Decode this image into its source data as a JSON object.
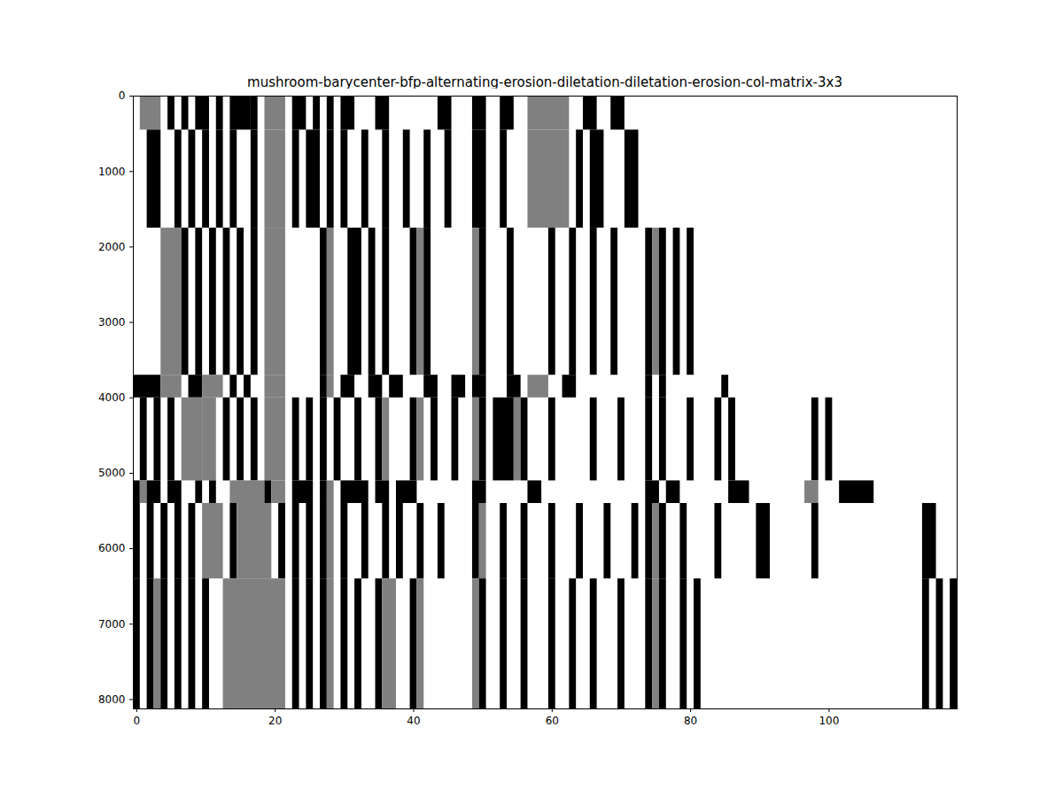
{
  "chart_data": {
    "type": "heatmap",
    "title": "mushroom-barycenter-bfp-alternating-erosion-diletation-diletation-erosion-col-matrix-3x3",
    "xlim": [
      -0.5,
      118.5
    ],
    "xticks": [
      0,
      20,
      40,
      60,
      80,
      100
    ],
    "ylim": [
      8123.5,
      -0.5
    ],
    "yticks": [
      0,
      1000,
      2000,
      3000,
      4000,
      5000,
      6000,
      7000,
      8000
    ],
    "clim": [
      0,
      1
    ],
    "row_bands": [
      {
        "rows": [
          0,
          450
        ],
        "cells": [
          [
            1,
            3,
            0.5
          ],
          [
            5,
            5,
            0
          ],
          [
            7,
            7,
            0
          ],
          [
            9,
            10,
            0
          ],
          [
            12,
            12,
            0
          ],
          [
            14,
            16,
            0
          ],
          [
            17,
            17,
            0
          ],
          [
            19,
            21,
            0.5
          ],
          [
            23,
            24,
            0
          ],
          [
            26,
            26,
            0
          ],
          [
            28,
            28,
            0
          ],
          [
            30,
            31,
            0
          ],
          [
            35,
            36,
            0
          ],
          [
            44,
            45,
            0
          ],
          [
            49,
            50,
            0
          ],
          [
            53,
            54,
            0
          ],
          [
            57,
            62,
            0.5
          ],
          [
            65,
            66,
            0
          ],
          [
            69,
            70,
            0
          ]
        ]
      },
      {
        "rows": [
          450,
          1750
        ],
        "cells": [
          [
            2,
            3,
            0
          ],
          [
            6,
            6,
            0
          ],
          [
            8,
            8,
            0
          ],
          [
            10,
            10,
            0
          ],
          [
            12,
            12,
            0
          ],
          [
            14,
            14,
            0
          ],
          [
            17,
            17,
            0
          ],
          [
            19,
            21,
            0.5
          ],
          [
            23,
            23,
            0
          ],
          [
            25,
            26,
            0
          ],
          [
            28,
            28,
            0
          ],
          [
            30,
            30,
            0
          ],
          [
            33,
            33,
            0
          ],
          [
            36,
            36,
            0
          ],
          [
            39,
            39,
            0
          ],
          [
            42,
            42,
            0
          ],
          [
            45,
            45,
            0
          ],
          [
            49,
            50,
            0
          ],
          [
            53,
            53,
            0
          ],
          [
            57,
            62,
            0.5
          ],
          [
            64,
            64,
            0
          ],
          [
            66,
            67,
            0
          ],
          [
            71,
            72,
            0
          ]
        ]
      },
      {
        "rows": [
          1750,
          3700
        ],
        "cells": [
          [
            4,
            6,
            0.5
          ],
          [
            7,
            7,
            0
          ],
          [
            9,
            9,
            0
          ],
          [
            11,
            11,
            0
          ],
          [
            13,
            13,
            0
          ],
          [
            15,
            15,
            0
          ],
          [
            17,
            17,
            0
          ],
          [
            19,
            21,
            0.5
          ],
          [
            27,
            27,
            0
          ],
          [
            28,
            28,
            0.5
          ],
          [
            31,
            32,
            0
          ],
          [
            34,
            34,
            0
          ],
          [
            36,
            36,
            0
          ],
          [
            40,
            40,
            0
          ],
          [
            41,
            41,
            0.5
          ],
          [
            42,
            42,
            0
          ],
          [
            49,
            49,
            0.5
          ],
          [
            50,
            50,
            0
          ],
          [
            54,
            54,
            0
          ],
          [
            60,
            60,
            0
          ],
          [
            63,
            63,
            0
          ],
          [
            66,
            66,
            0
          ],
          [
            69,
            69,
            0
          ],
          [
            74,
            74,
            0
          ],
          [
            75,
            75,
            0.5
          ],
          [
            76,
            76,
            0
          ],
          [
            78,
            78,
            0
          ],
          [
            80,
            80,
            0
          ]
        ]
      },
      {
        "rows": [
          3700,
          4000
        ],
        "cells": [
          [
            0,
            3,
            0
          ],
          [
            4,
            6,
            0.5
          ],
          [
            8,
            9,
            0
          ],
          [
            10,
            12,
            0.5
          ],
          [
            14,
            14,
            0
          ],
          [
            16,
            16,
            0
          ],
          [
            19,
            21,
            0.5
          ],
          [
            27,
            27,
            0
          ],
          [
            28,
            28,
            0.5
          ],
          [
            30,
            31,
            0
          ],
          [
            34,
            35,
            0
          ],
          [
            37,
            38,
            0
          ],
          [
            42,
            43,
            0
          ],
          [
            46,
            47,
            0
          ],
          [
            49,
            50,
            0
          ],
          [
            54,
            55,
            0
          ],
          [
            57,
            59,
            0.5
          ],
          [
            62,
            63,
            0
          ],
          [
            74,
            74,
            0
          ],
          [
            76,
            76,
            0
          ],
          [
            85,
            85,
            0
          ]
        ]
      },
      {
        "rows": [
          4000,
          5100
        ],
        "cells": [
          [
            1,
            1,
            0
          ],
          [
            3,
            3,
            0
          ],
          [
            5,
            5,
            0
          ],
          [
            7,
            9,
            0.5
          ],
          [
            10,
            11,
            0.5
          ],
          [
            13,
            13,
            0
          ],
          [
            15,
            15,
            0
          ],
          [
            17,
            17,
            0
          ],
          [
            19,
            21,
            0.5
          ],
          [
            23,
            23,
            0
          ],
          [
            25,
            25,
            0
          ],
          [
            27,
            27,
            0
          ],
          [
            29,
            29,
            0
          ],
          [
            32,
            32,
            0
          ],
          [
            35,
            35,
            0
          ],
          [
            36,
            36,
            0.5
          ],
          [
            40,
            40,
            0
          ],
          [
            41,
            41,
            0.5
          ],
          [
            43,
            43,
            0
          ],
          [
            46,
            46,
            0
          ],
          [
            49,
            49,
            0.5
          ],
          [
            50,
            50,
            0
          ],
          [
            52,
            54,
            0
          ],
          [
            55,
            55,
            0.5
          ],
          [
            56,
            56,
            0
          ],
          [
            60,
            60,
            0
          ],
          [
            66,
            66,
            0
          ],
          [
            70,
            70,
            0
          ],
          [
            74,
            74,
            0
          ],
          [
            76,
            76,
            0
          ],
          [
            80,
            80,
            0
          ],
          [
            84,
            84,
            0
          ],
          [
            86,
            86,
            0
          ],
          [
            98,
            98,
            0
          ],
          [
            100,
            100,
            0
          ]
        ]
      },
      {
        "rows": [
          5100,
          5400
        ],
        "cells": [
          [
            0,
            0,
            0
          ],
          [
            1,
            1,
            0.5
          ],
          [
            2,
            3,
            0
          ],
          [
            5,
            6,
            0
          ],
          [
            9,
            9,
            0
          ],
          [
            11,
            11,
            0
          ],
          [
            14,
            18,
            0.5
          ],
          [
            19,
            19,
            0
          ],
          [
            20,
            21,
            0.5
          ],
          [
            23,
            25,
            0
          ],
          [
            27,
            27,
            0
          ],
          [
            28,
            28,
            0.5
          ],
          [
            30,
            33,
            0
          ],
          [
            35,
            36,
            0
          ],
          [
            38,
            40,
            0
          ],
          [
            49,
            50,
            0
          ],
          [
            57,
            58,
            0
          ],
          [
            74,
            75,
            0
          ],
          [
            77,
            78,
            0
          ],
          [
            86,
            88,
            0
          ],
          [
            97,
            98,
            0.5
          ],
          [
            102,
            106,
            0
          ]
        ]
      },
      {
        "rows": [
          5400,
          6400
        ],
        "cells": [
          [
            0,
            0,
            0
          ],
          [
            2,
            2,
            0
          ],
          [
            4,
            4,
            0
          ],
          [
            6,
            6,
            0
          ],
          [
            8,
            8,
            0
          ],
          [
            10,
            12,
            0.5
          ],
          [
            14,
            14,
            0
          ],
          [
            15,
            19,
            0.5
          ],
          [
            21,
            21,
            0
          ],
          [
            23,
            23,
            0
          ],
          [
            25,
            25,
            0
          ],
          [
            27,
            27,
            0
          ],
          [
            28,
            28,
            0.5
          ],
          [
            30,
            30,
            0
          ],
          [
            33,
            33,
            0
          ],
          [
            36,
            36,
            0
          ],
          [
            38,
            38,
            0
          ],
          [
            41,
            41,
            0
          ],
          [
            44,
            44,
            0
          ],
          [
            49,
            49,
            0
          ],
          [
            50,
            50,
            0.5
          ],
          [
            53,
            53,
            0
          ],
          [
            56,
            56,
            0
          ],
          [
            60,
            60,
            0
          ],
          [
            64,
            64,
            0
          ],
          [
            68,
            68,
            0
          ],
          [
            72,
            72,
            0
          ],
          [
            74,
            74,
            0
          ],
          [
            75,
            75,
            0.5
          ],
          [
            76,
            76,
            0
          ],
          [
            79,
            79,
            0
          ],
          [
            84,
            84,
            0
          ],
          [
            90,
            91,
            0
          ],
          [
            98,
            98,
            0
          ],
          [
            114,
            115,
            0
          ]
        ]
      },
      {
        "rows": [
          6400,
          8124
        ],
        "cells": [
          [
            0,
            0,
            0
          ],
          [
            2,
            2,
            0
          ],
          [
            3,
            3,
            0.5
          ],
          [
            4,
            4,
            0
          ],
          [
            6,
            6,
            0
          ],
          [
            8,
            8,
            0
          ],
          [
            10,
            10,
            0
          ],
          [
            13,
            21,
            0.5
          ],
          [
            23,
            23,
            0
          ],
          [
            25,
            25,
            0
          ],
          [
            27,
            27,
            0
          ],
          [
            28,
            28,
            0.5
          ],
          [
            30,
            30,
            0
          ],
          [
            32,
            32,
            0
          ],
          [
            35,
            35,
            0
          ],
          [
            36,
            37,
            0.5
          ],
          [
            40,
            40,
            0
          ],
          [
            41,
            41,
            0.5
          ],
          [
            49,
            49,
            0.5
          ],
          [
            50,
            50,
            0
          ],
          [
            53,
            53,
            0
          ],
          [
            56,
            56,
            0
          ],
          [
            60,
            60,
            0
          ],
          [
            63,
            63,
            0
          ],
          [
            66,
            66,
            0
          ],
          [
            70,
            70,
            0
          ],
          [
            74,
            74,
            0
          ],
          [
            75,
            75,
            0.5
          ],
          [
            76,
            76,
            0
          ],
          [
            79,
            79,
            0
          ],
          [
            81,
            81,
            0
          ],
          [
            114,
            114,
            0
          ],
          [
            116,
            116,
            0
          ],
          [
            118,
            118,
            0
          ]
        ]
      }
    ]
  }
}
